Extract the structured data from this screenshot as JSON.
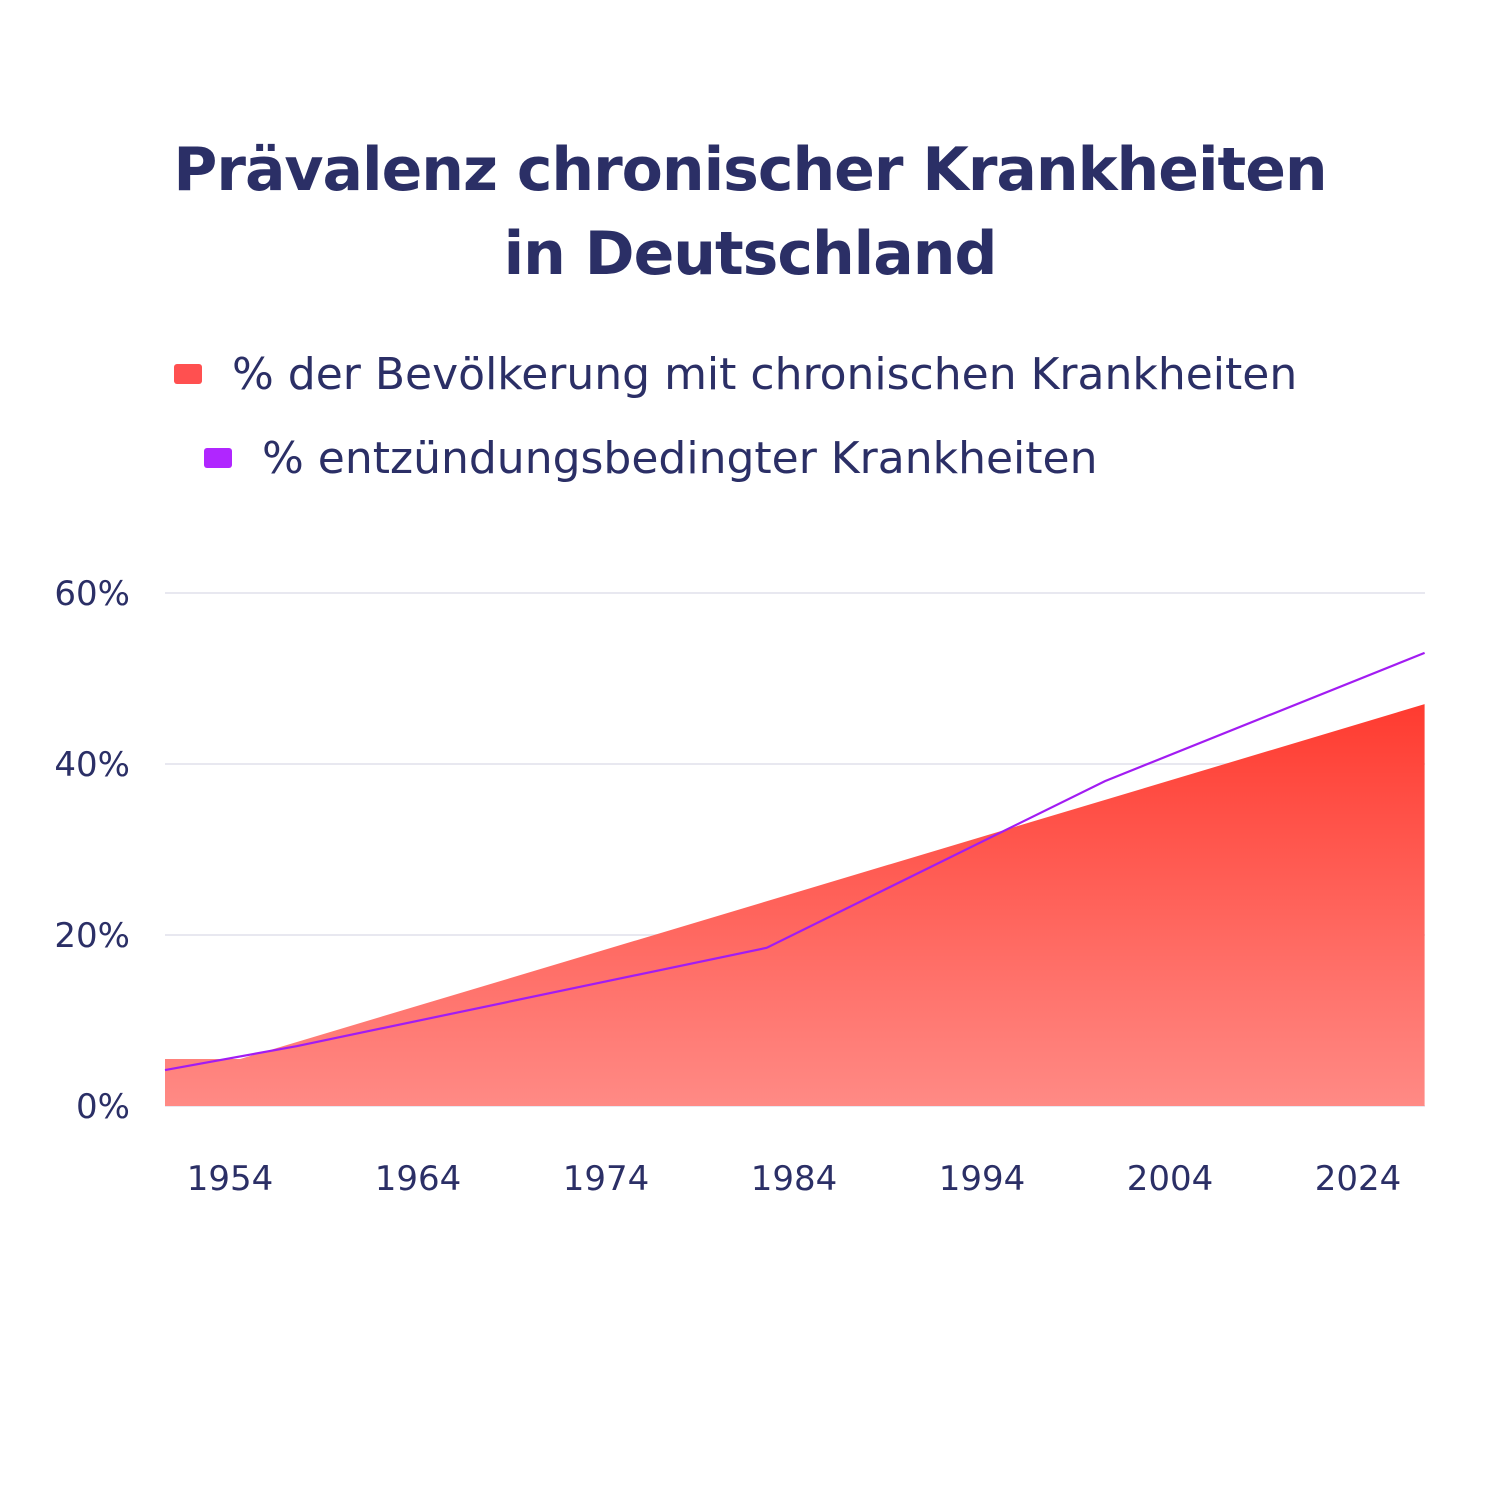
{
  "title": {
    "line1": "Prävalenz chronischer Krankheiten",
    "line2": "in Deutschland"
  },
  "legend": {
    "items": [
      {
        "label": "% der Bevölkerung mit chronischen Krankheiten",
        "color": "#ff5050"
      },
      {
        "label": "% entzündungsbedingter Krankheiten",
        "color": "#b026ff"
      }
    ]
  },
  "colors": {
    "area_top": "#ff3b30",
    "area_bottom": "#ff8a85",
    "line": "#a21cf2",
    "grid": "#e8e8f0",
    "text": "#2b2f66"
  },
  "chart_data": {
    "type": "area",
    "x_tick_labels": [
      "1954",
      "1964",
      "1974",
      "1984",
      "1994",
      "2004",
      "2024"
    ],
    "y_tick_labels": [
      "0%",
      "20%",
      "40%",
      "60%"
    ],
    "y_ticks": [
      0,
      20,
      40,
      60
    ],
    "ylim": [
      0,
      60
    ],
    "grid": true,
    "legend_position": "top",
    "series": [
      {
        "type": "area",
        "points": [
          {
            "x": 0,
            "y": 5.5
          },
          {
            "x": 0.4,
            "y": 5.5
          },
          {
            "x": 6.7,
            "y": 47
          }
        ]
      },
      {
        "type": "line",
        "points": [
          {
            "x": 0,
            "y": 4.2
          },
          {
            "x": 0.7,
            "y": 7.0
          },
          {
            "x": 3.2,
            "y": 18.5
          },
          {
            "x": 5.0,
            "y": 38.0
          },
          {
            "x": 6.7,
            "y": 53.0
          }
        ]
      }
    ]
  }
}
